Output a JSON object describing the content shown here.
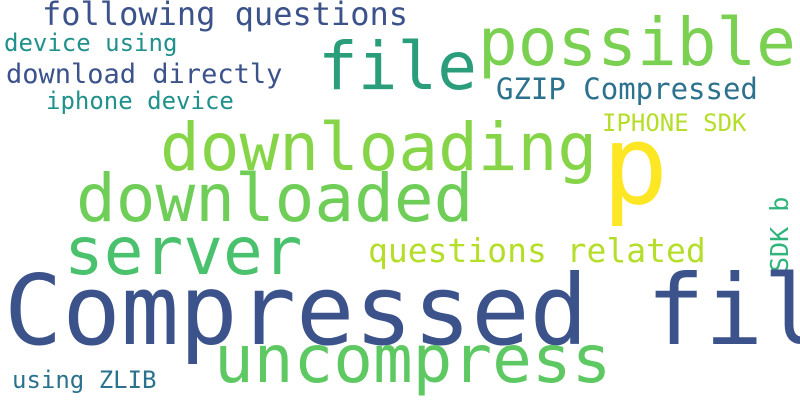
{
  "word_cloud": {
    "words": [
      {
        "text": "following questions",
        "color": "#3b528b"
      },
      {
        "text": "device using",
        "color": "#21918c"
      },
      {
        "text": "download directly",
        "color": "#3b528b"
      },
      {
        "text": "iphone device",
        "color": "#21918c"
      },
      {
        "text": "file",
        "color": "#2a9d7b"
      },
      {
        "text": "possible",
        "color": "#7ad151"
      },
      {
        "text": "GZIP Compressed",
        "color": "#2c728e"
      },
      {
        "text": "IPHONE SDK",
        "color": "#b5de2b"
      },
      {
        "text": "downloading",
        "color": "#86d549"
      },
      {
        "text": "p",
        "color": "#fde725"
      },
      {
        "text": "downloaded",
        "color": "#6ece58"
      },
      {
        "text": "server",
        "color": "#4ac16d"
      },
      {
        "text": "questions related",
        "color": "#b5de2b"
      },
      {
        "text": "SDK b",
        "color": "#2fb47c"
      },
      {
        "text": "Compressed file",
        "color": "#3b528b"
      },
      {
        "text": "uncompress",
        "color": "#5ec962"
      },
      {
        "text": "using ZLIB",
        "color": "#2c728e"
      }
    ]
  }
}
